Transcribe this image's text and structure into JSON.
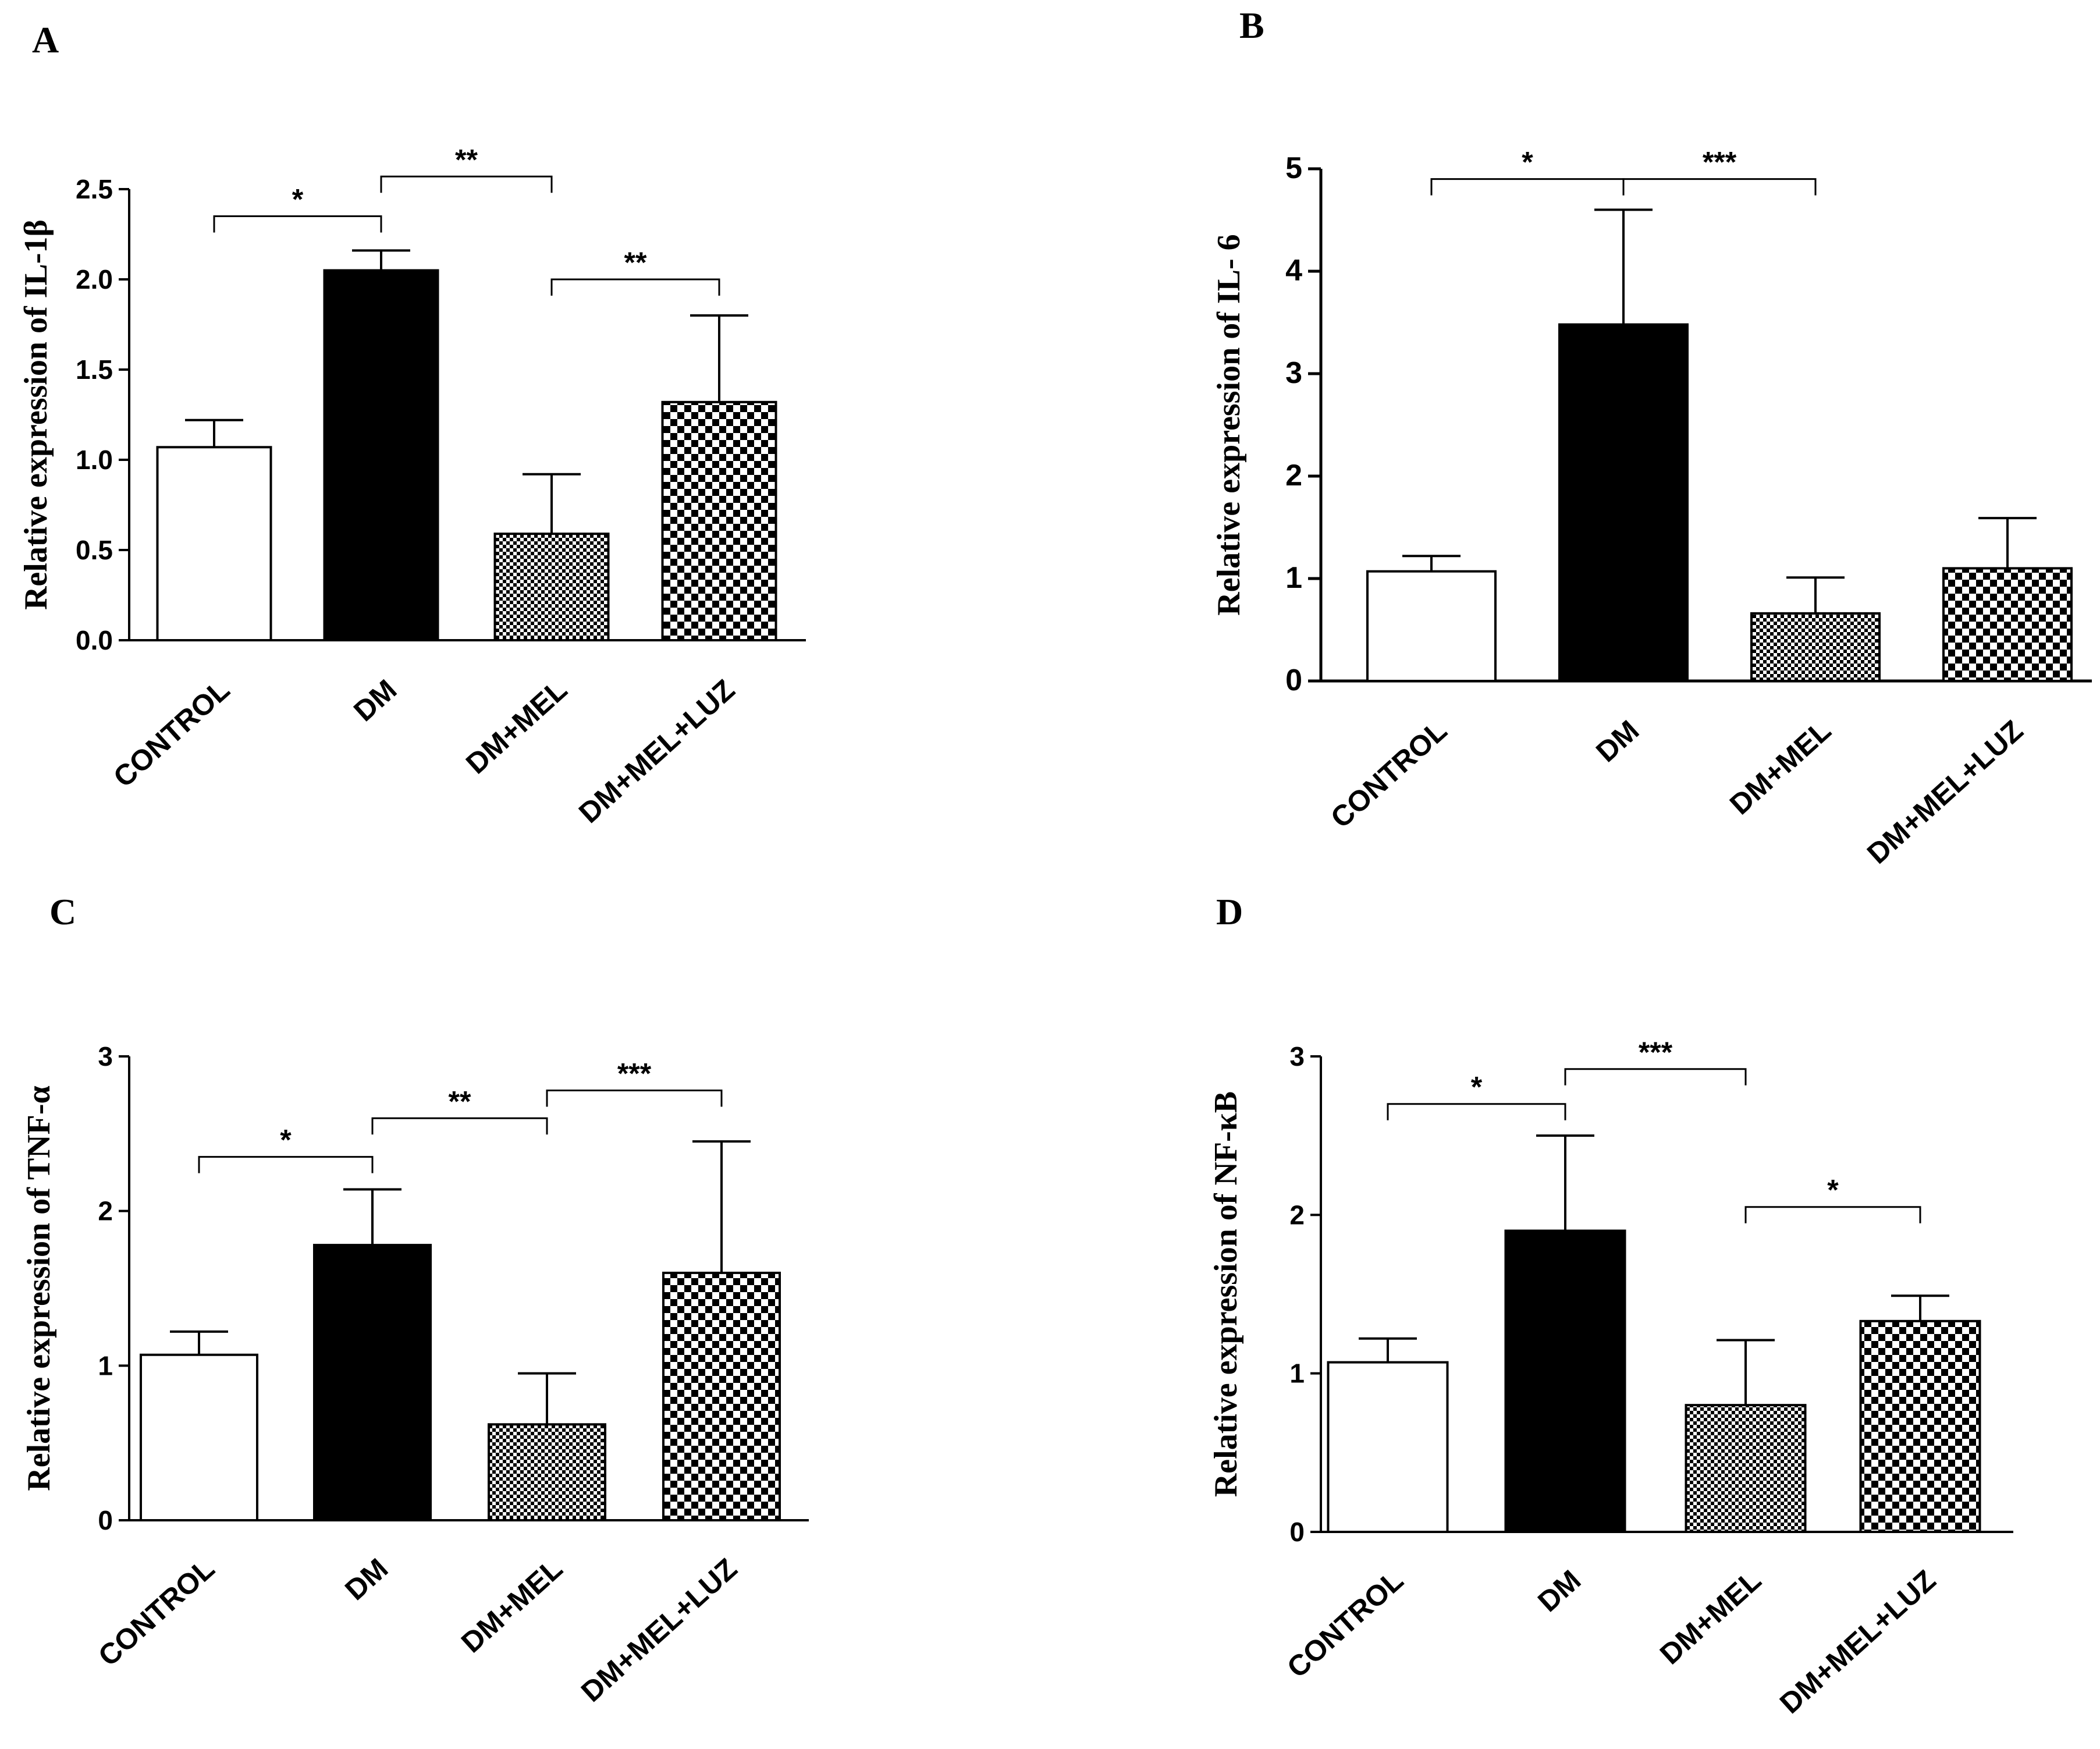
{
  "colors": {
    "ink": "#000000",
    "paper": "#ffffff"
  },
  "chart_data": [
    {
      "panel": "A",
      "type": "bar",
      "ylabel": "Relative expression of IL-1β",
      "categories": [
        "CONTROL",
        "DM",
        "DM+MEL",
        "DM+MEL+LUZ"
      ],
      "values": [
        1.07,
        2.05,
        0.59,
        1.32
      ],
      "errors": [
        0.15,
        0.11,
        0.33,
        0.48
      ],
      "fills": [
        "white",
        "black",
        "fine-check",
        "coarse-check"
      ],
      "ylim": [
        0,
        2.5
      ],
      "yticks": [
        "0.0",
        "0.5",
        "1.0",
        "1.5",
        "2.0",
        "2.5"
      ],
      "significance": [
        {
          "from": 0,
          "to": 1,
          "label": "*",
          "y": 2.35
        },
        {
          "from": 1,
          "to": 2,
          "label": "**",
          "y": 2.57
        },
        {
          "from": 2,
          "to": 3,
          "label": "**",
          "y": 2.0
        }
      ]
    },
    {
      "panel": "B",
      "type": "bar",
      "ylabel": "Relative expression of IL- 6",
      "categories": [
        "CONTROL",
        "DM",
        "DM+MEL",
        "DM+MEL+LUZ"
      ],
      "values": [
        1.07,
        3.48,
        0.66,
        1.1
      ],
      "errors": [
        0.15,
        1.12,
        0.35,
        0.49
      ],
      "fills": [
        "white",
        "black",
        "fine-check",
        "coarse-check"
      ],
      "ylim": [
        0,
        5
      ],
      "yticks": [
        "0",
        "1",
        "2",
        "3",
        "4",
        "5"
      ],
      "significance": [
        {
          "from": 0,
          "to": 1,
          "label": "*",
          "y": 4.9
        },
        {
          "from": 1,
          "to": 2,
          "label": "***",
          "y": 4.9
        }
      ]
    },
    {
      "panel": "C",
      "type": "bar",
      "ylabel": "Relative expression of TNF-α",
      "categories": [
        "CONTROL",
        "DM",
        "DM+MEL",
        "DM+MEL+LUZ"
      ],
      "values": [
        1.07,
        1.78,
        0.62,
        1.6
      ],
      "errors": [
        0.15,
        0.36,
        0.33,
        0.85
      ],
      "fills": [
        "white",
        "black",
        "fine-check",
        "coarse-check"
      ],
      "ylim": [
        0,
        3
      ],
      "yticks": [
        "0",
        "1",
        "2",
        "3"
      ],
      "significance": [
        {
          "from": 0,
          "to": 1,
          "label": "*",
          "y": 2.35
        },
        {
          "from": 1,
          "to": 2,
          "label": "**",
          "y": 2.6
        },
        {
          "from": 2,
          "to": 3,
          "label": "***",
          "y": 2.78
        }
      ]
    },
    {
      "panel": "D",
      "type": "bar",
      "ylabel": "Relative expression of NF-κB",
      "categories": [
        "CONTROL",
        "DM",
        "DM+MEL",
        "DM+MEL+LUZ"
      ],
      "values": [
        1.07,
        1.9,
        0.8,
        1.33
      ],
      "errors": [
        0.15,
        0.6,
        0.41,
        0.16
      ],
      "fills": [
        "white",
        "black",
        "fine-check",
        "coarse-check"
      ],
      "ylim": [
        0,
        3
      ],
      "yticks": [
        "0",
        "1",
        "2",
        "3"
      ],
      "significance": [
        {
          "from": 0,
          "to": 1,
          "label": "*",
          "y": 2.7
        },
        {
          "from": 1,
          "to": 2,
          "label": "***",
          "y": 2.92
        },
        {
          "from": 2,
          "to": 3,
          "label": "*",
          "y": 2.05
        }
      ]
    }
  ]
}
